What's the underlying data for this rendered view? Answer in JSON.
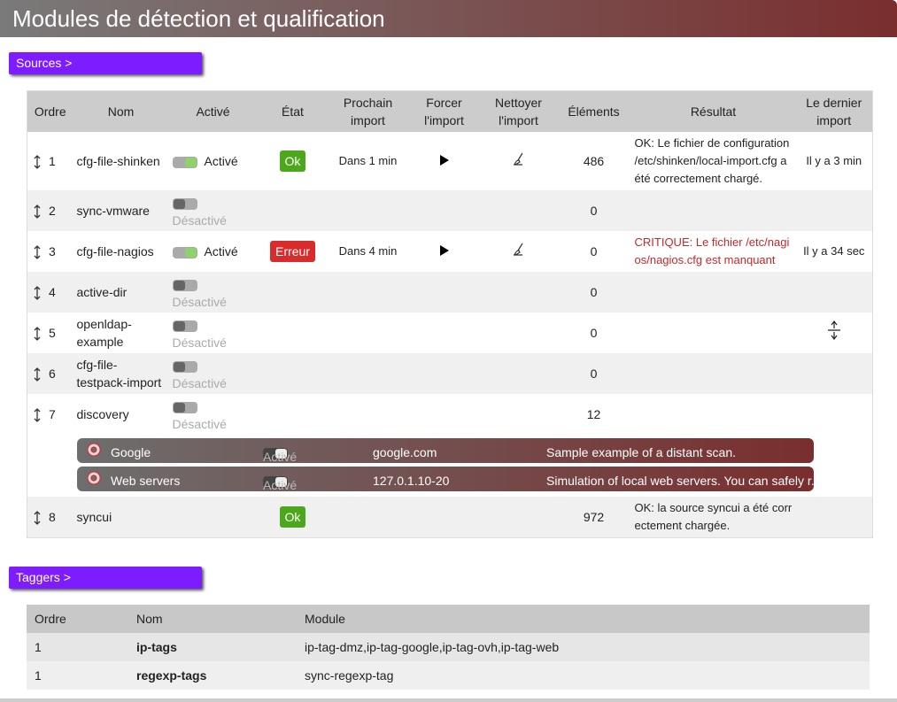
{
  "header": {
    "title": "Modules de détection et qualification"
  },
  "sources": {
    "button": "Sources >",
    "columns": [
      "Ordre",
      "Nom",
      "Activé",
      "État",
      "Prochain import",
      "Forcer l'import",
      "Nettoyer l'import",
      "Éléments",
      "Résultat",
      "Le dernier import"
    ],
    "rows": [
      {
        "order": 1,
        "name": "cfg-file-shinken",
        "enabled": true,
        "enabled_label": "Activé",
        "state": "Ok",
        "state_color": "#4ca81a",
        "next_import": "Dans 1 min",
        "actions": true,
        "elements": 486,
        "result": "OK: Le fichier de configuration /etc/shinken/local-import.cfg a été correctement chargé.",
        "result_color": "#222222",
        "last_import": "Il y a 3 min"
      },
      {
        "order": 2,
        "name": "sync-vmware",
        "enabled": false,
        "enabled_label": "Désactivé",
        "elements": 0
      },
      {
        "order": 3,
        "name": "cfg-file-nagios",
        "enabled": true,
        "enabled_label": "Activé",
        "state": "Erreur",
        "state_color": "#d92b2b",
        "next_import": "Dans 4 min",
        "actions": true,
        "elements": 0,
        "result": "CRITIQUE: Le fichier /etc/nagios/nagios.cfg est manquant",
        "result_color": "#c62828",
        "last_import": "Il y a 34 sec"
      },
      {
        "order": 4,
        "name": "active-dir",
        "enabled": false,
        "enabled_label": "Désactivé",
        "elements": 0
      },
      {
        "order": 5,
        "name": "openldap-example",
        "enabled": false,
        "enabled_label": "Désactivé",
        "elements": 0
      },
      {
        "order": 6,
        "name": "cfg-file-testpack-import",
        "enabled": false,
        "enabled_label": "Désactivé",
        "elements": 0
      },
      {
        "order": 7,
        "name": "discovery",
        "enabled": false,
        "enabled_label": "Désactivé",
        "elements": 12,
        "rules": [
          {
            "name": "Google",
            "enabled_label": "Activé",
            "target": "google.com",
            "description": "Sample example of a distant scan."
          },
          {
            "name": "Web servers",
            "enabled_label": "Activé",
            "target": "127.0.1.10-20",
            "description": "Simulation of local web servers. You can safely r..."
          }
        ]
      },
      {
        "order": 8,
        "name": "syncui",
        "state": "Ok",
        "state_color": "#4ca81a",
        "elements": 972,
        "result": "OK: la source syncui a été correctement chargée.",
        "result_color": "#222222"
      }
    ]
  },
  "taggers": {
    "button": "Taggers >",
    "columns": [
      "Ordre",
      "Nom",
      "Module"
    ],
    "rows": [
      {
        "order": 1,
        "name": "ip-tags",
        "module": "ip-tag-dmz,ip-tag-google,ip-tag-ovh,ip-tag-web"
      },
      {
        "order": 1,
        "name": "regexp-tags",
        "module": "sync-regexp-tag"
      }
    ]
  }
}
